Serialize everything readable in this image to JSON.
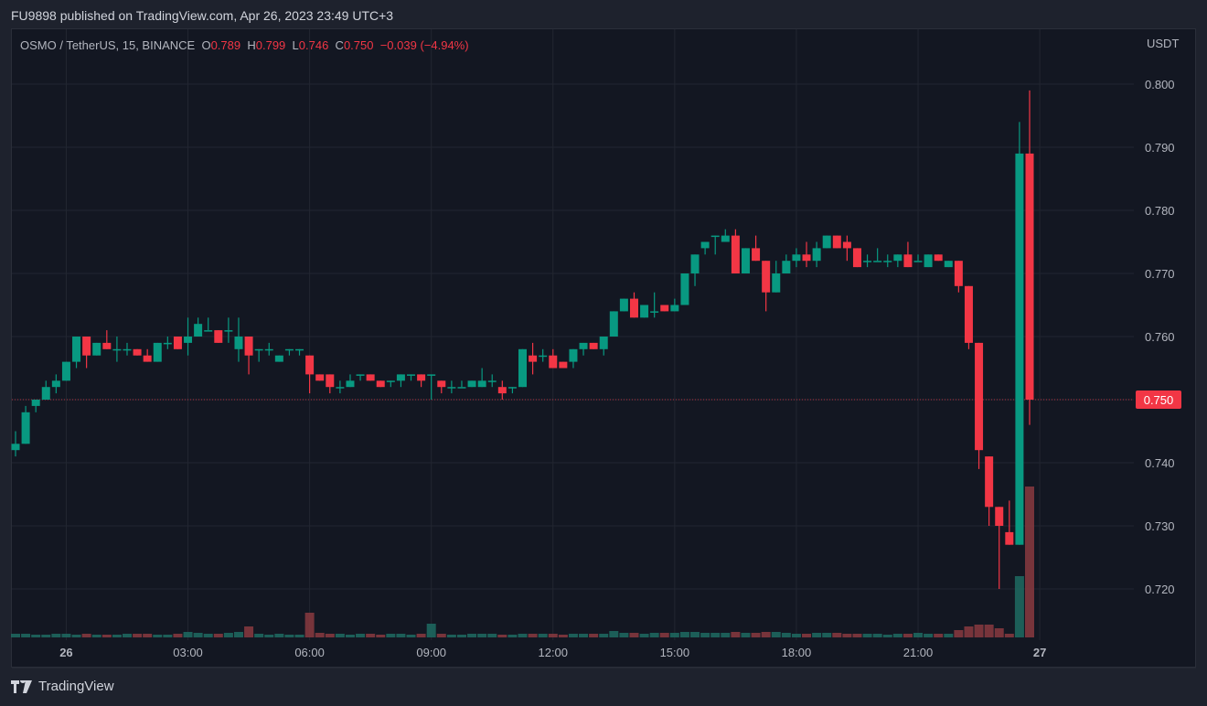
{
  "header": {
    "published": "FU9898 published on TradingView.com, Apr 26, 2023 23:49 UTC+3"
  },
  "legend": {
    "symbol": "OSMO / TetherUS, 15, BINANCE",
    "o_label": "O",
    "o": "0.789",
    "h_label": "H",
    "h": "0.799",
    "l_label": "L",
    "l": "0.746",
    "c_label": "C",
    "c": "0.750",
    "change": "−0.039 (−4.94%)"
  },
  "footer": {
    "brand": "TradingView",
    "logo_icon": "tradingview-logo-icon"
  },
  "colors": {
    "up": "#089981",
    "down": "#f23645",
    "background": "#131722",
    "last_price": "#f23645"
  },
  "chart_data": {
    "type": "candlestick",
    "title": "",
    "interval_minutes": 15,
    "currency_label": "USDT",
    "ylim": [
      0.713,
      0.807
    ],
    "grid": true,
    "y_ticks": [
      "0.800",
      "0.790",
      "0.780",
      "0.770",
      "0.760",
      "0.750",
      "0.740",
      "0.730",
      "0.720"
    ],
    "x_ticks": [
      {
        "index": 5,
        "label": "26"
      },
      {
        "index": 17,
        "label": "03:00"
      },
      {
        "index": 29,
        "label": "06:00"
      },
      {
        "index": 41,
        "label": "09:00"
      },
      {
        "index": 53,
        "label": "12:00"
      },
      {
        "index": 65,
        "label": "15:00"
      },
      {
        "index": 77,
        "label": "18:00"
      },
      {
        "index": 89,
        "label": "21:00"
      },
      {
        "index": 101,
        "label": "27"
      }
    ],
    "last_price": "0.750",
    "ohlc": [
      [
        0.742,
        0.745,
        0.741,
        0.743
      ],
      [
        0.743,
        0.749,
        0.743,
        0.748
      ],
      [
        0.749,
        0.75,
        0.748,
        0.75
      ],
      [
        0.75,
        0.753,
        0.75,
        0.752
      ],
      [
        0.752,
        0.754,
        0.751,
        0.753
      ],
      [
        0.753,
        0.756,
        0.753,
        0.756
      ],
      [
        0.756,
        0.76,
        0.755,
        0.76
      ],
      [
        0.76,
        0.76,
        0.755,
        0.757
      ],
      [
        0.757,
        0.759,
        0.757,
        0.759
      ],
      [
        0.759,
        0.761,
        0.758,
        0.758
      ],
      [
        0.758,
        0.76,
        0.756,
        0.758
      ],
      [
        0.758,
        0.759,
        0.757,
        0.758
      ],
      [
        0.758,
        0.758,
        0.757,
        0.757
      ],
      [
        0.757,
        0.758,
        0.756,
        0.756
      ],
      [
        0.756,
        0.759,
        0.756,
        0.759
      ],
      [
        0.759,
        0.76,
        0.758,
        0.759
      ],
      [
        0.76,
        0.76,
        0.758,
        0.758
      ],
      [
        0.759,
        0.763,
        0.757,
        0.76
      ],
      [
        0.76,
        0.763,
        0.76,
        0.762
      ],
      [
        0.761,
        0.763,
        0.761,
        0.761
      ],
      [
        0.761,
        0.761,
        0.759,
        0.759
      ],
      [
        0.761,
        0.763,
        0.759,
        0.761
      ],
      [
        0.758,
        0.763,
        0.756,
        0.76
      ],
      [
        0.76,
        0.76,
        0.754,
        0.757
      ],
      [
        0.758,
        0.758,
        0.756,
        0.758
      ],
      [
        0.758,
        0.759,
        0.757,
        0.758
      ],
      [
        0.756,
        0.757,
        0.756,
        0.757
      ],
      [
        0.758,
        0.758,
        0.757,
        0.758
      ],
      [
        0.758,
        0.758,
        0.757,
        0.758
      ],
      [
        0.757,
        0.757,
        0.751,
        0.754
      ],
      [
        0.754,
        0.754,
        0.753,
        0.753
      ],
      [
        0.754,
        0.754,
        0.751,
        0.752
      ],
      [
        0.752,
        0.753,
        0.751,
        0.752
      ],
      [
        0.752,
        0.754,
        0.752,
        0.753
      ],
      [
        0.754,
        0.754,
        0.753,
        0.754
      ],
      [
        0.754,
        0.754,
        0.753,
        0.753
      ],
      [
        0.753,
        0.753,
        0.752,
        0.752
      ],
      [
        0.753,
        0.753,
        0.752,
        0.753
      ],
      [
        0.753,
        0.754,
        0.752,
        0.754
      ],
      [
        0.754,
        0.754,
        0.753,
        0.754
      ],
      [
        0.754,
        0.754,
        0.752,
        0.753
      ],
      [
        0.754,
        0.754,
        0.75,
        0.754
      ],
      [
        0.753,
        0.753,
        0.751,
        0.752
      ],
      [
        0.752,
        0.753,
        0.751,
        0.752
      ],
      [
        0.752,
        0.753,
        0.752,
        0.752
      ],
      [
        0.752,
        0.753,
        0.752,
        0.753
      ],
      [
        0.752,
        0.755,
        0.752,
        0.753
      ],
      [
        0.753,
        0.754,
        0.752,
        0.753
      ],
      [
        0.752,
        0.753,
        0.75,
        0.751
      ],
      [
        0.752,
        0.752,
        0.751,
        0.752
      ],
      [
        0.752,
        0.758,
        0.752,
        0.758
      ],
      [
        0.757,
        0.759,
        0.754,
        0.756
      ],
      [
        0.757,
        0.758,
        0.756,
        0.757
      ],
      [
        0.757,
        0.758,
        0.755,
        0.755
      ],
      [
        0.756,
        0.756,
        0.755,
        0.755
      ],
      [
        0.756,
        0.758,
        0.755,
        0.758
      ],
      [
        0.758,
        0.759,
        0.757,
        0.759
      ],
      [
        0.759,
        0.759,
        0.758,
        0.758
      ],
      [
        0.758,
        0.76,
        0.757,
        0.76
      ],
      [
        0.76,
        0.764,
        0.76,
        0.764
      ],
      [
        0.764,
        0.766,
        0.764,
        0.766
      ],
      [
        0.766,
        0.767,
        0.763,
        0.763
      ],
      [
        0.763,
        0.765,
        0.763,
        0.765
      ],
      [
        0.764,
        0.767,
        0.763,
        0.764
      ],
      [
        0.765,
        0.765,
        0.764,
        0.764
      ],
      [
        0.764,
        0.766,
        0.764,
        0.765
      ],
      [
        0.765,
        0.77,
        0.765,
        0.77
      ],
      [
        0.77,
        0.773,
        0.768,
        0.773
      ],
      [
        0.774,
        0.775,
        0.773,
        0.775
      ],
      [
        0.776,
        0.776,
        0.773,
        0.776
      ],
      [
        0.775,
        0.777,
        0.775,
        0.776
      ],
      [
        0.776,
        0.777,
        0.77,
        0.77
      ],
      [
        0.77,
        0.774,
        0.77,
        0.774
      ],
      [
        0.774,
        0.776,
        0.772,
        0.772
      ],
      [
        0.772,
        0.772,
        0.764,
        0.767
      ],
      [
        0.767,
        0.772,
        0.767,
        0.77
      ],
      [
        0.77,
        0.773,
        0.77,
        0.772
      ],
      [
        0.772,
        0.774,
        0.771,
        0.773
      ],
      [
        0.773,
        0.775,
        0.771,
        0.772
      ],
      [
        0.772,
        0.775,
        0.771,
        0.774
      ],
      [
        0.774,
        0.776,
        0.774,
        0.776
      ],
      [
        0.776,
        0.776,
        0.774,
        0.774
      ],
      [
        0.775,
        0.776,
        0.772,
        0.774
      ],
      [
        0.774,
        0.774,
        0.771,
        0.771
      ],
      [
        0.772,
        0.773,
        0.771,
        0.772
      ],
      [
        0.772,
        0.774,
        0.772,
        0.772
      ],
      [
        0.772,
        0.773,
        0.771,
        0.772
      ],
      [
        0.772,
        0.773,
        0.771,
        0.773
      ],
      [
        0.773,
        0.775,
        0.771,
        0.771
      ],
      [
        0.772,
        0.773,
        0.772,
        0.772
      ],
      [
        0.771,
        0.773,
        0.771,
        0.773
      ],
      [
        0.773,
        0.773,
        0.772,
        0.772
      ],
      [
        0.771,
        0.772,
        0.771,
        0.772
      ],
      [
        0.772,
        0.772,
        0.767,
        0.768
      ],
      [
        0.768,
        0.768,
        0.758,
        0.759
      ],
      [
        0.759,
        0.759,
        0.739,
        0.742
      ],
      [
        0.741,
        0.741,
        0.73,
        0.733
      ],
      [
        0.733,
        0.733,
        0.72,
        0.73
      ],
      [
        0.729,
        0.734,
        0.727,
        0.727
      ],
      [
        0.727,
        0.794,
        0.727,
        0.789
      ],
      [
        0.789,
        0.799,
        0.746,
        0.75
      ]
    ],
    "volume_relative": [
      4,
      4,
      3,
      3,
      4,
      4,
      3,
      4,
      3,
      3,
      3,
      4,
      4,
      4,
      3,
      3,
      4,
      6,
      5,
      4,
      4,
      5,
      6,
      12,
      4,
      3,
      4,
      3,
      3,
      27,
      5,
      4,
      4,
      3,
      4,
      4,
      3,
      4,
      4,
      3,
      4,
      15,
      4,
      3,
      3,
      4,
      4,
      4,
      3,
      3,
      4,
      4,
      4,
      4,
      3,
      4,
      4,
      4,
      4,
      7,
      5,
      5,
      4,
      5,
      5,
      5,
      6,
      6,
      5,
      5,
      5,
      6,
      5,
      5,
      6,
      6,
      5,
      4,
      4,
      5,
      5,
      5,
      4,
      4,
      4,
      4,
      3,
      4,
      4,
      5,
      4,
      4,
      4,
      8,
      12,
      14,
      14,
      10,
      4,
      67,
      165
    ]
  }
}
